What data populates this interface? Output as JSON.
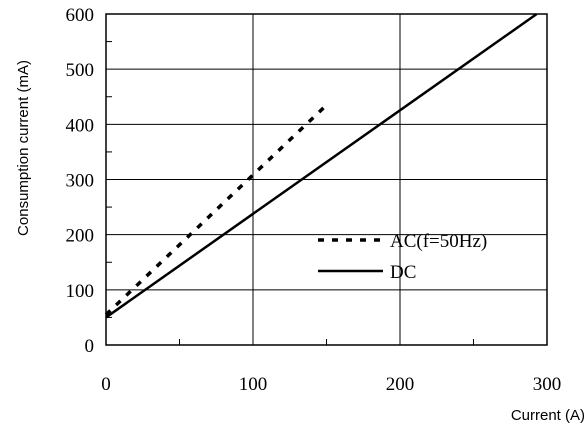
{
  "chart_data": {
    "type": "line",
    "xlabel": "Current (A)",
    "ylabel": "Consumption current (mA)",
    "xlim": [
      0,
      300
    ],
    "ylim": [
      0,
      600
    ],
    "x_ticks": [
      0,
      100,
      200,
      300
    ],
    "y_ticks": [
      0,
      100,
      200,
      300,
      400,
      500,
      600
    ],
    "grid": true,
    "legend_position": "center-right",
    "series": [
      {
        "name": "AC(f=50Hz)",
        "style": "dashed",
        "color": "#000000",
        "x": [
          0,
          150
        ],
        "y": [
          55,
          435
        ]
      },
      {
        "name": "DC",
        "style": "solid",
        "color": "#000000",
        "x": [
          0,
          293
        ],
        "y": [
          50,
          600
        ]
      }
    ]
  }
}
